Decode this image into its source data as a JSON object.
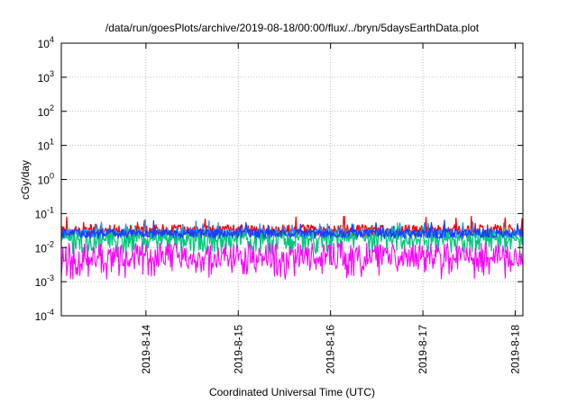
{
  "chart_data": {
    "type": "line",
    "title": "/data/run/goesPlots/archive/2019-08-18/00:00/flux/../bryn/5daysEarthData.plot",
    "xlabel": "Coordinated Universal Time (UTC)",
    "ylabel": "cGy/day",
    "y_scale": "log",
    "ylim": [
      0.0001,
      10000
    ],
    "y_ticks": [
      {
        "value": 0.0001,
        "base": "10",
        "exp": "-4"
      },
      {
        "value": 0.001,
        "base": "10",
        "exp": "-3"
      },
      {
        "value": 0.01,
        "base": "10",
        "exp": "-2"
      },
      {
        "value": 0.1,
        "base": "10",
        "exp": "-1"
      },
      {
        "value": 1,
        "base": "10",
        "exp": "0"
      },
      {
        "value": 10,
        "base": "10",
        "exp": "1"
      },
      {
        "value": 100,
        "base": "10",
        "exp": "2"
      },
      {
        "value": 1000,
        "base": "10",
        "exp": "3"
      },
      {
        "value": 10000,
        "base": "10",
        "exp": "4"
      }
    ],
    "xlim": [
      "2019-08-13 02:00",
      "2019-08-18 02:00"
    ],
    "x_ticks": [
      "2019-8-14",
      "2019-8-15",
      "2019-8-16",
      "2019-8-17",
      "2019-8-18"
    ],
    "grid": true,
    "legend": "none",
    "series": [
      {
        "color": "#ff0000",
        "baseline": 0.03,
        "amplitude": 0.6,
        "dips": false
      },
      {
        "color": "#1e90ff",
        "baseline": 0.025,
        "amplitude": 0.5,
        "dips": false
      },
      {
        "color": "#00c87a",
        "baseline": 0.02,
        "amplitude": 0.5,
        "dips": true
      },
      {
        "color": "#1a3cff",
        "baseline": 0.025,
        "amplitude": 0.45,
        "dips": false
      },
      {
        "color": "#ff00ff",
        "baseline": 0.0055,
        "amplitude": 1.2,
        "dips": true
      }
    ]
  }
}
